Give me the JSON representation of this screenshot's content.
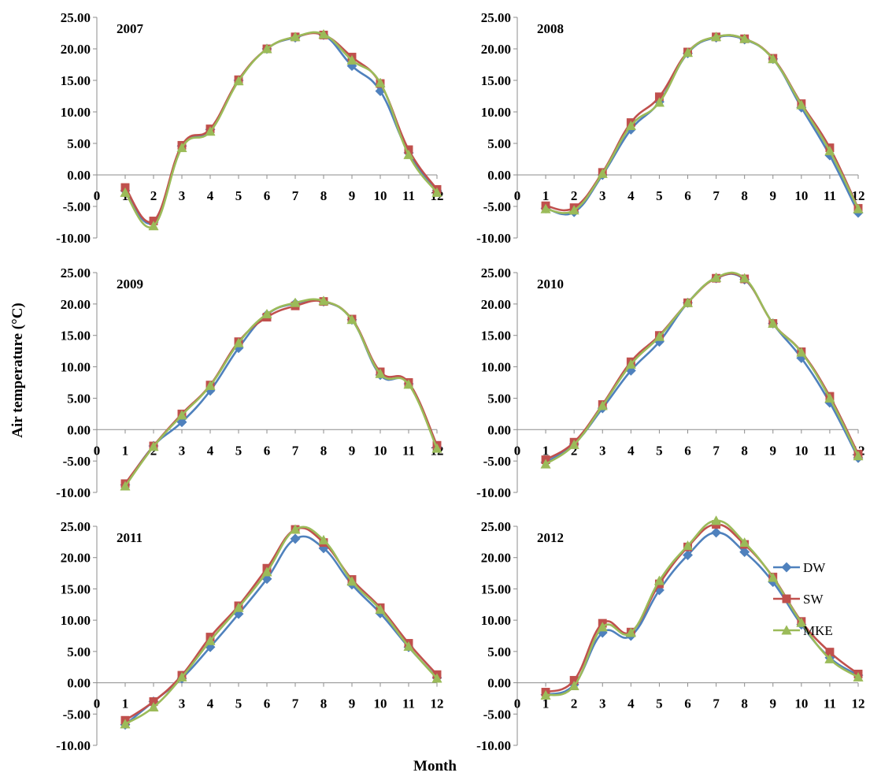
{
  "figure": {
    "y_axis_label": "Air temperature (°C)",
    "x_axis_label": "Month"
  },
  "colors": {
    "DW": "#4f81bd",
    "SW": "#c0504d",
    "MKE": "#9bbb59"
  },
  "chart_data": [
    {
      "type": "line",
      "title": "2007",
      "x": [
        1,
        2,
        3,
        4,
        5,
        6,
        7,
        8,
        9,
        10,
        11,
        12
      ],
      "ylim": [
        -10,
        25
      ],
      "xlim": [
        0,
        12
      ],
      "yticks": [
        "-10.00",
        "-5.00",
        "0.00",
        "5.00",
        "10.00",
        "15.00",
        "20.00",
        "25.00"
      ],
      "xticks": [
        "0",
        "1",
        "2",
        "3",
        "4",
        "5",
        "6",
        "7",
        "8",
        "9",
        "10",
        "11",
        "12"
      ],
      "series": [
        {
          "name": "DW",
          "values": [
            -2.5,
            -7.5,
            4.6,
            7.2,
            15.0,
            20.0,
            21.8,
            22.2,
            17.3,
            13.3,
            3.5,
            -2.5
          ]
        },
        {
          "name": "SW",
          "values": [
            -2.0,
            -7.3,
            4.7,
            7.3,
            15.1,
            20.0,
            21.9,
            22.2,
            18.7,
            14.5,
            4.0,
            -2.3
          ]
        },
        {
          "name": "MKE",
          "values": [
            -2.8,
            -8.1,
            4.3,
            6.9,
            14.9,
            20.0,
            21.9,
            22.3,
            18.2,
            14.6,
            3.2,
            -2.8
          ]
        }
      ]
    },
    {
      "type": "line",
      "title": "2008",
      "x": [
        1,
        2,
        3,
        4,
        5,
        6,
        7,
        8,
        9,
        10,
        11,
        12
      ],
      "ylim": [
        -10,
        25
      ],
      "xlim": [
        0,
        12
      ],
      "yticks": [
        "-10.00",
        "-5.00",
        "0.00",
        "5.00",
        "10.00",
        "15.00",
        "20.00",
        "25.00"
      ],
      "xticks": [
        "0",
        "1",
        "2",
        "3",
        "4",
        "5",
        "6",
        "7",
        "8",
        "9",
        "10",
        "11",
        "12"
      ],
      "series": [
        {
          "name": "DW",
          "values": [
            -5.3,
            -5.9,
            0.0,
            7.2,
            11.6,
            19.3,
            21.8,
            21.5,
            18.4,
            10.7,
            3.1,
            -6.0
          ]
        },
        {
          "name": "SW",
          "values": [
            -4.9,
            -5.2,
            0.4,
            8.3,
            12.4,
            19.5,
            21.9,
            21.6,
            18.5,
            11.3,
            4.3,
            -5.3
          ]
        },
        {
          "name": "MKE",
          "values": [
            -5.4,
            -5.6,
            0.2,
            7.8,
            11.5,
            19.4,
            21.9,
            21.6,
            18.4,
            11.1,
            3.8,
            -5.4
          ]
        }
      ]
    },
    {
      "type": "line",
      "title": "2009",
      "x": [
        1,
        2,
        3,
        4,
        5,
        6,
        7,
        8,
        9,
        10,
        11,
        12
      ],
      "ylim": [
        -10,
        25
      ],
      "xlim": [
        0,
        12
      ],
      "yticks": [
        "-10.00",
        "-5.00",
        "0.00",
        "5.00",
        "10.00",
        "15.00",
        "20.00",
        "25.00"
      ],
      "xticks": [
        "0",
        "1",
        "2",
        "3",
        "4",
        "5",
        "6",
        "7",
        "8",
        "9",
        "10",
        "11",
        "12"
      ],
      "series": [
        {
          "name": "DW",
          "values": [
            -8.8,
            -2.6,
            1.2,
            6.2,
            13.0,
            18.3,
            20.1,
            20.4,
            17.5,
            8.7,
            7.3,
            -2.8
          ]
        },
        {
          "name": "SW",
          "values": [
            -8.6,
            -2.6,
            2.5,
            7.1,
            14.0,
            17.9,
            19.7,
            20.4,
            17.6,
            9.2,
            7.5,
            -2.5
          ]
        },
        {
          "name": "MKE",
          "values": [
            -9.0,
            -2.7,
            2.3,
            7.0,
            13.8,
            18.4,
            20.2,
            20.5,
            17.5,
            8.9,
            7.2,
            -3.0
          ]
        }
      ]
    },
    {
      "type": "line",
      "title": "2010",
      "x": [
        1,
        2,
        3,
        4,
        5,
        6,
        7,
        8,
        9,
        10,
        11,
        12
      ],
      "ylim": [
        -10,
        25
      ],
      "xlim": [
        0,
        12
      ],
      "yticks": [
        "-10.00",
        "-5.00",
        "0.00",
        "5.00",
        "10.00",
        "15.00",
        "20.00",
        "25.00"
      ],
      "xticks": [
        "0",
        "1",
        "2",
        "3",
        "4",
        "5",
        "6",
        "7",
        "8",
        "9",
        "10",
        "11",
        "12"
      ],
      "series": [
        {
          "name": "DW",
          "values": [
            -5.2,
            -2.3,
            3.4,
            9.4,
            14.0,
            20.2,
            24.1,
            23.9,
            16.9,
            11.4,
            4.3,
            -4.5
          ]
        },
        {
          "name": "SW",
          "values": [
            -4.8,
            -2.0,
            4.0,
            10.8,
            15.0,
            20.2,
            24.1,
            24.0,
            16.9,
            12.4,
            5.3,
            -3.9
          ]
        },
        {
          "name": "MKE",
          "values": [
            -5.5,
            -2.4,
            3.8,
            10.4,
            14.8,
            20.2,
            24.2,
            24.1,
            16.9,
            12.3,
            5.0,
            -4.2
          ]
        }
      ]
    },
    {
      "type": "line",
      "title": "2011",
      "x": [
        1,
        2,
        3,
        4,
        5,
        6,
        7,
        8,
        9,
        10,
        11,
        12
      ],
      "ylim": [
        -10,
        25
      ],
      "xlim": [
        0,
        12
      ],
      "yticks": [
        "-10.00",
        "-5.00",
        "0.00",
        "5.00",
        "10.00",
        "15.00",
        "20.00",
        "25.00"
      ],
      "xticks": [
        "0",
        "1",
        "2",
        "3",
        "4",
        "5",
        "6",
        "7",
        "8",
        "9",
        "10",
        "11",
        "12"
      ],
      "series": [
        {
          "name": "DW",
          "values": [
            -6.7,
            -3.0,
            0.7,
            5.7,
            11.0,
            16.6,
            23.0,
            21.5,
            15.7,
            11.1,
            5.7,
            0.8
          ]
        },
        {
          "name": "SW",
          "values": [
            -6.0,
            -3.0,
            1.2,
            7.3,
            12.3,
            18.3,
            24.5,
            22.4,
            16.5,
            12.0,
            6.3,
            1.3
          ]
        },
        {
          "name": "MKE",
          "values": [
            -6.6,
            -3.9,
            0.9,
            6.7,
            12.0,
            17.7,
            24.5,
            22.8,
            16.2,
            11.7,
            5.8,
            0.7
          ]
        }
      ]
    },
    {
      "type": "line",
      "title": "2012",
      "x": [
        1,
        2,
        3,
        4,
        5,
        6,
        7,
        8,
        9,
        10,
        11,
        12
      ],
      "ylim": [
        -10,
        25
      ],
      "xlim": [
        0,
        12
      ],
      "yticks": [
        "-10.00",
        "-5.00",
        "0.00",
        "5.00",
        "10.00",
        "15.00",
        "20.00",
        "25.00"
      ],
      "xticks": [
        "0",
        "1",
        "2",
        "3",
        "4",
        "5",
        "6",
        "7",
        "8",
        "9",
        "10",
        "11",
        "12"
      ],
      "legend": "right",
      "series": [
        {
          "name": "DW",
          "values": [
            -1.9,
            -0.3,
            8.0,
            7.5,
            14.8,
            20.4,
            24.0,
            20.9,
            16.1,
            9.3,
            4.0,
            1.2
          ]
        },
        {
          "name": "SW",
          "values": [
            -1.5,
            0.4,
            9.5,
            8.1,
            15.8,
            21.7,
            25.3,
            22.1,
            16.9,
            9.8,
            4.9,
            1.4
          ]
        },
        {
          "name": "MKE",
          "values": [
            -2.0,
            -0.5,
            8.9,
            8.0,
            16.3,
            21.9,
            25.9,
            22.4,
            16.8,
            9.6,
            3.8,
            0.9
          ]
        }
      ]
    }
  ]
}
